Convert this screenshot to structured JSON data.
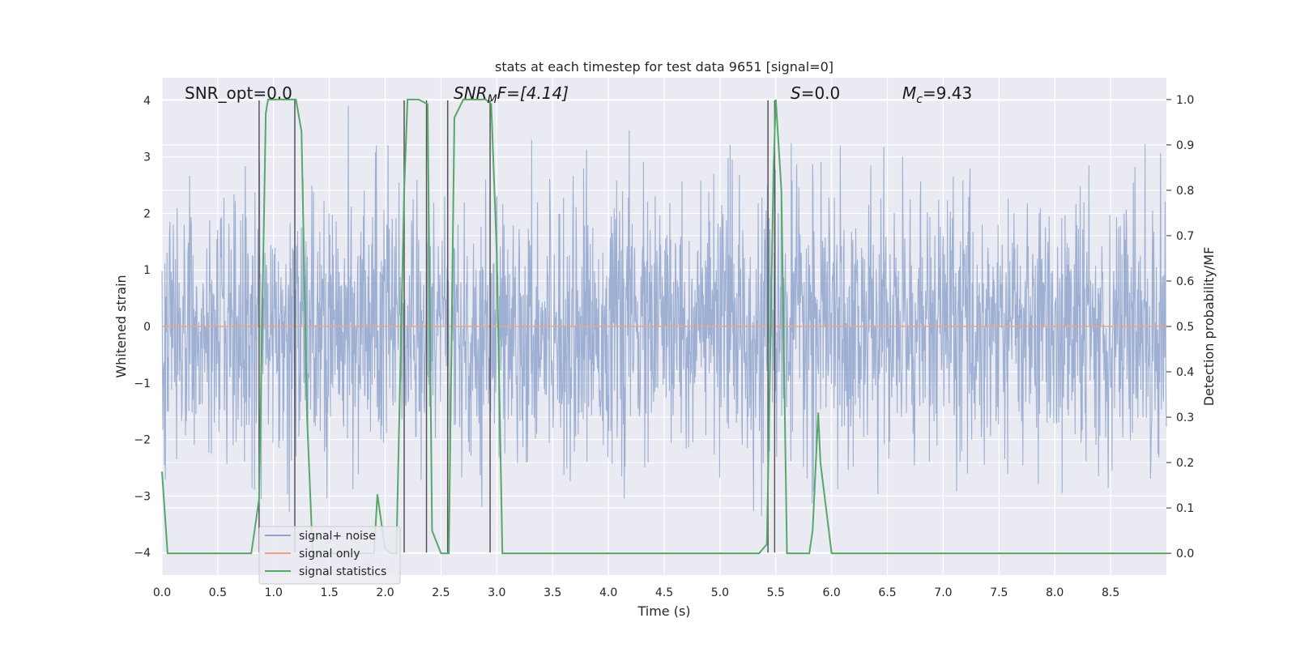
{
  "chart_data": {
    "type": "line",
    "title": "stats at each timestep for test data 9651 [signal=0]",
    "xlabel": "Time (s)",
    "ylabel": "Whitened strain",
    "y2label": "Detection probability/MF",
    "xlim": [
      0.0,
      9.0
    ],
    "ylim": [
      -4.4,
      4.4
    ],
    "y2lim": [
      -0.048,
      1.048
    ],
    "x_ticks": [
      "0.0",
      "0.5",
      "1.0",
      "1.5",
      "2.0",
      "2.5",
      "3.0",
      "3.5",
      "4.0",
      "4.5",
      "5.0",
      "5.5",
      "6.0",
      "6.5",
      "7.0",
      "7.5",
      "8.0",
      "8.5"
    ],
    "y_ticks": [
      "4",
      "3",
      "2",
      "1",
      "0",
      "−1",
      "−2",
      "−3",
      "−4"
    ],
    "y2_ticks": [
      "1.0",
      "0.9",
      "0.8",
      "0.7",
      "0.6",
      "0.5",
      "0.4",
      "0.3",
      "0.2",
      "0.1",
      "0.0"
    ],
    "grid": true,
    "legend_position": "lower-left",
    "annotations": {
      "snr_opt": "SNR_opt=0.0",
      "snr_mf_main": "SNR",
      "snr_mf_sub": "M",
      "snr_mf_rest": "F=[4.14]",
      "s_var": "S",
      "s_rest": "=0.0",
      "mc_var": "M",
      "mc_sub": "c",
      "mc_rest": "=9.43"
    },
    "series": [
      {
        "name": "signal+ noise",
        "color": "#8fa4cc",
        "description_values": "noise",
        "envelope_abs_max": 3.9
      },
      {
        "name": "signal only",
        "color": "#e8a58a",
        "values_constant": 0.0
      },
      {
        "name": "signal statistics",
        "color": "#55a868",
        "axis": "right",
        "x": [
          0.0,
          0.05,
          0.1,
          0.8,
          0.87,
          0.93,
          0.95,
          1.0,
          1.1,
          1.2,
          1.25,
          1.3,
          1.35,
          1.5,
          1.6,
          1.7,
          1.8,
          1.9,
          1.93,
          1.97,
          2.0,
          2.05,
          2.1,
          2.17,
          2.2,
          2.25,
          2.3,
          2.38,
          2.42,
          2.5,
          2.57,
          2.62,
          2.7,
          2.8,
          2.9,
          2.95,
          3.0,
          3.05,
          3.1,
          3.2,
          5.35,
          5.42,
          5.48,
          5.5,
          5.55,
          5.6,
          5.7,
          5.8,
          5.83,
          5.88,
          5.9,
          5.95,
          6.0,
          6.1,
          9.0
        ],
        "y": [
          0.18,
          0.0,
          0.0,
          0.0,
          0.12,
          0.97,
          1.0,
          1.0,
          1.0,
          1.0,
          0.93,
          0.3,
          0.0,
          0.0,
          0.0,
          0.0,
          0.0,
          0.0,
          0.13,
          0.06,
          0.01,
          0.0,
          0.0,
          0.8,
          1.0,
          1.0,
          1.0,
          0.99,
          0.05,
          0.0,
          0.0,
          0.96,
          1.0,
          1.0,
          1.0,
          0.99,
          0.66,
          0.0,
          0.0,
          0.0,
          0.0,
          0.02,
          0.85,
          1.0,
          0.8,
          0.0,
          0.0,
          0.0,
          0.05,
          0.31,
          0.2,
          0.1,
          0.0,
          0.0,
          0.0
        ]
      }
    ],
    "vertical_lines_x": [
      0.87,
      1.19,
      2.17,
      2.37,
      2.56,
      2.94,
      5.43,
      5.49
    ]
  }
}
